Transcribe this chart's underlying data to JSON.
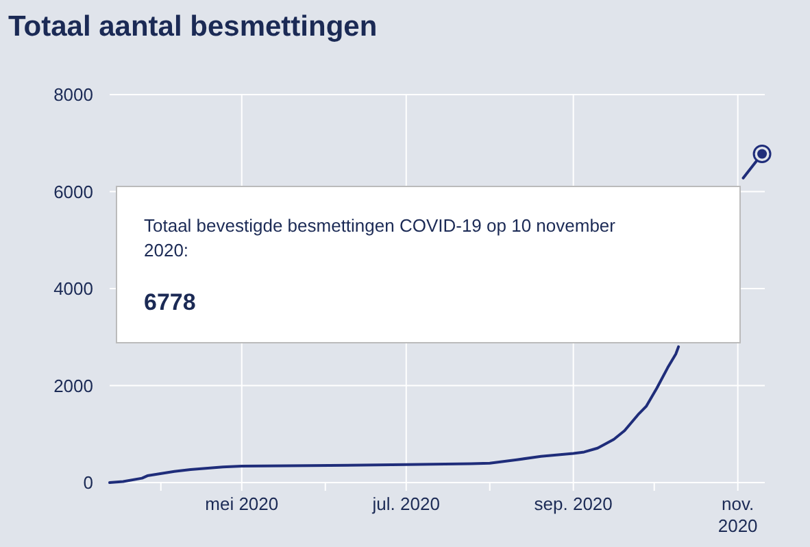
{
  "chart_data": {
    "type": "line",
    "title": "Totaal aantal besmettingen",
    "x": [
      "2020-03-13",
      "2020-03-18",
      "2020-03-25",
      "2020-03-27",
      "2020-04-06",
      "2020-04-12",
      "2020-04-24",
      "2020-05-01",
      "2020-05-26",
      "2020-07-01",
      "2020-07-25",
      "2020-08-01",
      "2020-08-11",
      "2020-08-20",
      "2020-09-01",
      "2020-09-05",
      "2020-09-10",
      "2020-09-16",
      "2020-09-20",
      "2020-09-25",
      "2020-09-28",
      "2020-10-02",
      "2020-10-06",
      "2020-10-09",
      "2020-10-10",
      "2020-10-21",
      "2020-11-03",
      "2020-11-10"
    ],
    "series": [
      {
        "color": "#1f2d7a",
        "values": [
          0,
          20,
          90,
          140,
          230,
          270,
          320,
          340,
          350,
          370,
          390,
          400,
          470,
          540,
          600,
          630,
          710,
          890,
          1070,
          1400,
          1570,
          1950,
          2370,
          2650,
          2800,
          null,
          6280,
          6778
        ]
      }
    ],
    "xlim": [
      "2020-03-13",
      "2020-11-11"
    ],
    "xticks": [
      {
        "value": "2020-04-01",
        "label": null
      },
      {
        "value": "2020-05-01",
        "label": "mei 2020"
      },
      {
        "value": "2020-06-01",
        "label": null
      },
      {
        "value": "2020-07-01",
        "label": "jul. 2020"
      },
      {
        "value": "2020-08-01",
        "label": null
      },
      {
        "value": "2020-09-01",
        "label": "sep. 2020"
      },
      {
        "value": "2020-10-01",
        "label": null
      },
      {
        "value": "2020-11-01",
        "label": "nov. 2020"
      }
    ],
    "ylim": [
      0,
      8000
    ],
    "yticks": [
      0,
      2000,
      4000,
      6000,
      8000
    ],
    "grid": true,
    "line_style": "solid",
    "annotations": [
      "Totaal bevestigde besmettingen COVID-19 op 10 november 2020:",
      "6778"
    ]
  }
}
